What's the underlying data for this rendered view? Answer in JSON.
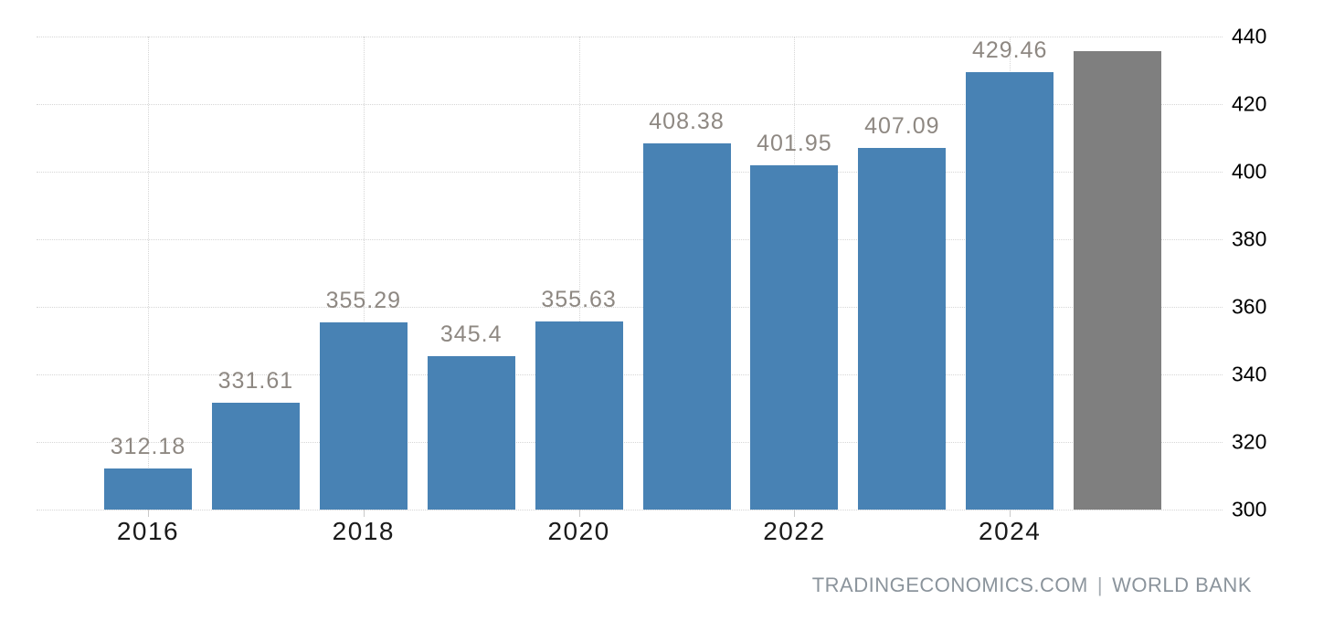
{
  "chart_data": {
    "type": "bar",
    "x_tick_labels": [
      "2016",
      "2018",
      "2020",
      "2022",
      "2024"
    ],
    "bars": [
      {
        "label": "312.18",
        "value": 312.18,
        "color": "#4882b4"
      },
      {
        "label": "331.61",
        "value": 331.61,
        "color": "#4882b4"
      },
      {
        "label": "355.29",
        "value": 355.29,
        "color": "#4882b4"
      },
      {
        "label": "345.4",
        "value": 345.4,
        "color": "#4882b4"
      },
      {
        "label": "355.63",
        "value": 355.63,
        "color": "#4882b4"
      },
      {
        "label": "408.38",
        "value": 408.38,
        "color": "#4882b4"
      },
      {
        "label": "401.95",
        "value": 401.95,
        "color": "#4882b4"
      },
      {
        "label": "407.09",
        "value": 407.09,
        "color": "#4882b4"
      },
      {
        "label": "429.46",
        "value": 429.46,
        "color": "#4882b4"
      },
      {
        "label": "",
        "value": 435.8,
        "color": "#7f7f7f"
      }
    ],
    "y_ticks": [
      300,
      320,
      340,
      360,
      380,
      400,
      420,
      440
    ],
    "ylim": [
      300,
      440
    ],
    "grid": true,
    "legend": "none",
    "y_axis_side": "right"
  },
  "colors": {
    "bar": "#4882b4",
    "forecast_bar": "#7f7f7f",
    "gridline": "#d6d6d6",
    "value_label": "#8e8882",
    "axis_label": "#1a1a1a",
    "attribution": "#8b949c"
  },
  "attribution": {
    "website": "TRADINGECONOMICS.COM",
    "separator": "|",
    "source": "WORLD BANK"
  }
}
